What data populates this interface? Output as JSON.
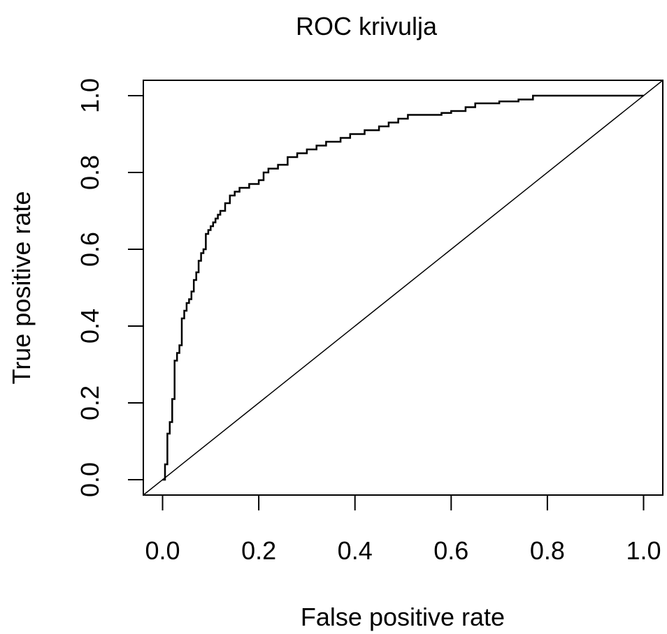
{
  "chart_data": {
    "type": "line",
    "title": "ROC krivulja",
    "xlabel": "False positive rate",
    "ylabel": "True positive rate",
    "xlim": [
      -0.04,
      1.04
    ],
    "ylim": [
      -0.04,
      1.04
    ],
    "x_ticks": [
      "0.0",
      "0.2",
      "0.4",
      "0.6",
      "0.8",
      "1.0"
    ],
    "y_ticks": [
      "0.0",
      "0.2",
      "0.4",
      "0.6",
      "0.8",
      "1.0"
    ],
    "x_tick_values": [
      0,
      0.2,
      0.4,
      0.6,
      0.8,
      1.0
    ],
    "y_tick_values": [
      0,
      0.2,
      0.4,
      0.6,
      0.8,
      1.0
    ],
    "grid": false,
    "legend": "none",
    "series": [
      {
        "x": [
          0,
          0.005,
          0.005,
          0.01,
          0.01,
          0.015,
          0.015,
          0.02,
          0.02,
          0.025,
          0.025,
          0.03,
          0.03,
          0.035,
          0.035,
          0.04,
          0.04,
          0.045,
          0.045,
          0.05,
          0.05,
          0.055,
          0.055,
          0.06,
          0.06,
          0.065,
          0.065,
          0.07,
          0.07,
          0.075,
          0.075,
          0.08,
          0.08,
          0.085,
          0.085,
          0.09,
          0.09,
          0.095,
          0.095,
          0.1,
          0.1,
          0.105,
          0.105,
          0.11,
          0.11,
          0.115,
          0.115,
          0.12,
          0.12,
          0.13,
          0.13,
          0.14,
          0.14,
          0.15,
          0.15,
          0.16,
          0.16,
          0.18,
          0.18,
          0.2,
          0.2,
          0.21,
          0.21,
          0.22,
          0.22,
          0.24,
          0.24,
          0.26,
          0.26,
          0.28,
          0.28,
          0.3,
          0.3,
          0.32,
          0.32,
          0.34,
          0.34,
          0.37,
          0.37,
          0.39,
          0.39,
          0.42,
          0.42,
          0.45,
          0.45,
          0.47,
          0.47,
          0.49,
          0.49,
          0.51,
          0.51,
          0.58,
          0.58,
          0.6,
          0.6,
          0.63,
          0.63,
          0.65,
          0.65,
          0.7,
          0.7,
          0.74,
          0.74,
          0.77,
          0.77,
          1.0
        ],
        "y": [
          0,
          0,
          0.04,
          0.04,
          0.12,
          0.12,
          0.15,
          0.15,
          0.21,
          0.21,
          0.31,
          0.31,
          0.33,
          0.33,
          0.35,
          0.35,
          0.42,
          0.42,
          0.44,
          0.44,
          0.46,
          0.46,
          0.47,
          0.47,
          0.49,
          0.49,
          0.52,
          0.52,
          0.54,
          0.54,
          0.57,
          0.57,
          0.59,
          0.59,
          0.6,
          0.6,
          0.64,
          0.64,
          0.65,
          0.65,
          0.66,
          0.66,
          0.67,
          0.67,
          0.68,
          0.68,
          0.69,
          0.69,
          0.7,
          0.7,
          0.72,
          0.72,
          0.74,
          0.74,
          0.75,
          0.75,
          0.76,
          0.76,
          0.77,
          0.77,
          0.78,
          0.78,
          0.8,
          0.8,
          0.81,
          0.81,
          0.82,
          0.82,
          0.84,
          0.84,
          0.85,
          0.85,
          0.86,
          0.86,
          0.87,
          0.87,
          0.88,
          0.88,
          0.89,
          0.89,
          0.9,
          0.9,
          0.91,
          0.91,
          0.92,
          0.92,
          0.93,
          0.93,
          0.94,
          0.94,
          0.95,
          0.95,
          0.955,
          0.955,
          0.96,
          0.96,
          0.97,
          0.97,
          0.98,
          0.98,
          0.985,
          0.985,
          0.99,
          0.99,
          1.0,
          1.0
        ]
      },
      {
        "x": [
          -0.04,
          1.04
        ],
        "y": [
          -0.04,
          1.04
        ]
      }
    ]
  }
}
